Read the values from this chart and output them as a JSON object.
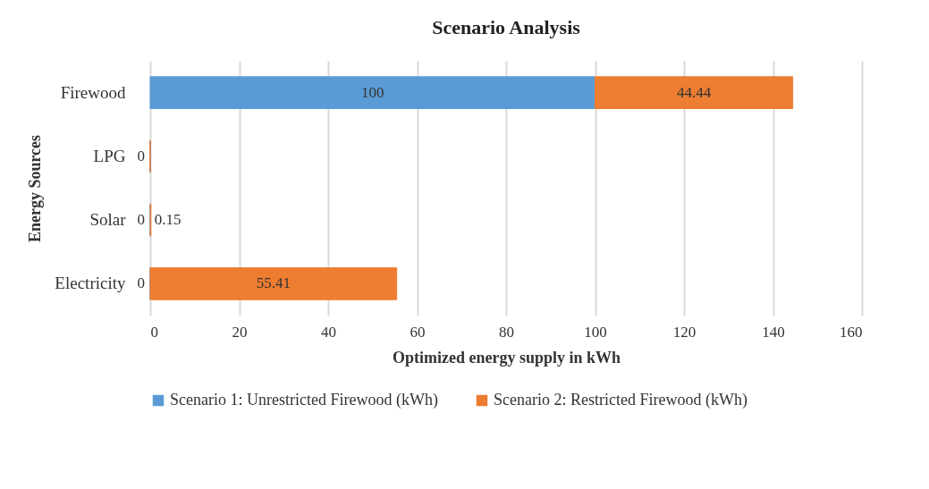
{
  "chart_data": {
    "type": "bar",
    "orientation": "horizontal",
    "stacked": true,
    "title": "Scenario Analysis",
    "xlabel": "Optimized energy supply in kWh",
    "ylabel": "Energy Sources",
    "categories": [
      "Firewood",
      "LPG",
      "Solar",
      "Electricity"
    ],
    "series": [
      {
        "name": "Scenario 1: Unrestricted Firewood (kWh)",
        "color": "#5b9bd5",
        "values": [
          100,
          0,
          0,
          0
        ],
        "value_labels": [
          "100",
          "0",
          "0",
          "0"
        ]
      },
      {
        "name": "Scenario 2: Restricted Firewood (kWh)",
        "color": "#ed7d31",
        "values": [
          44.44,
          0,
          0.15,
          55.41
        ],
        "value_labels": [
          "44.44",
          null,
          "0.15",
          "55.41"
        ]
      }
    ],
    "xlim": [
      0,
      160
    ],
    "xticks": [
      0,
      20,
      40,
      60,
      80,
      100,
      120,
      140,
      160
    ],
    "grid": "x",
    "legend": "bottom"
  }
}
